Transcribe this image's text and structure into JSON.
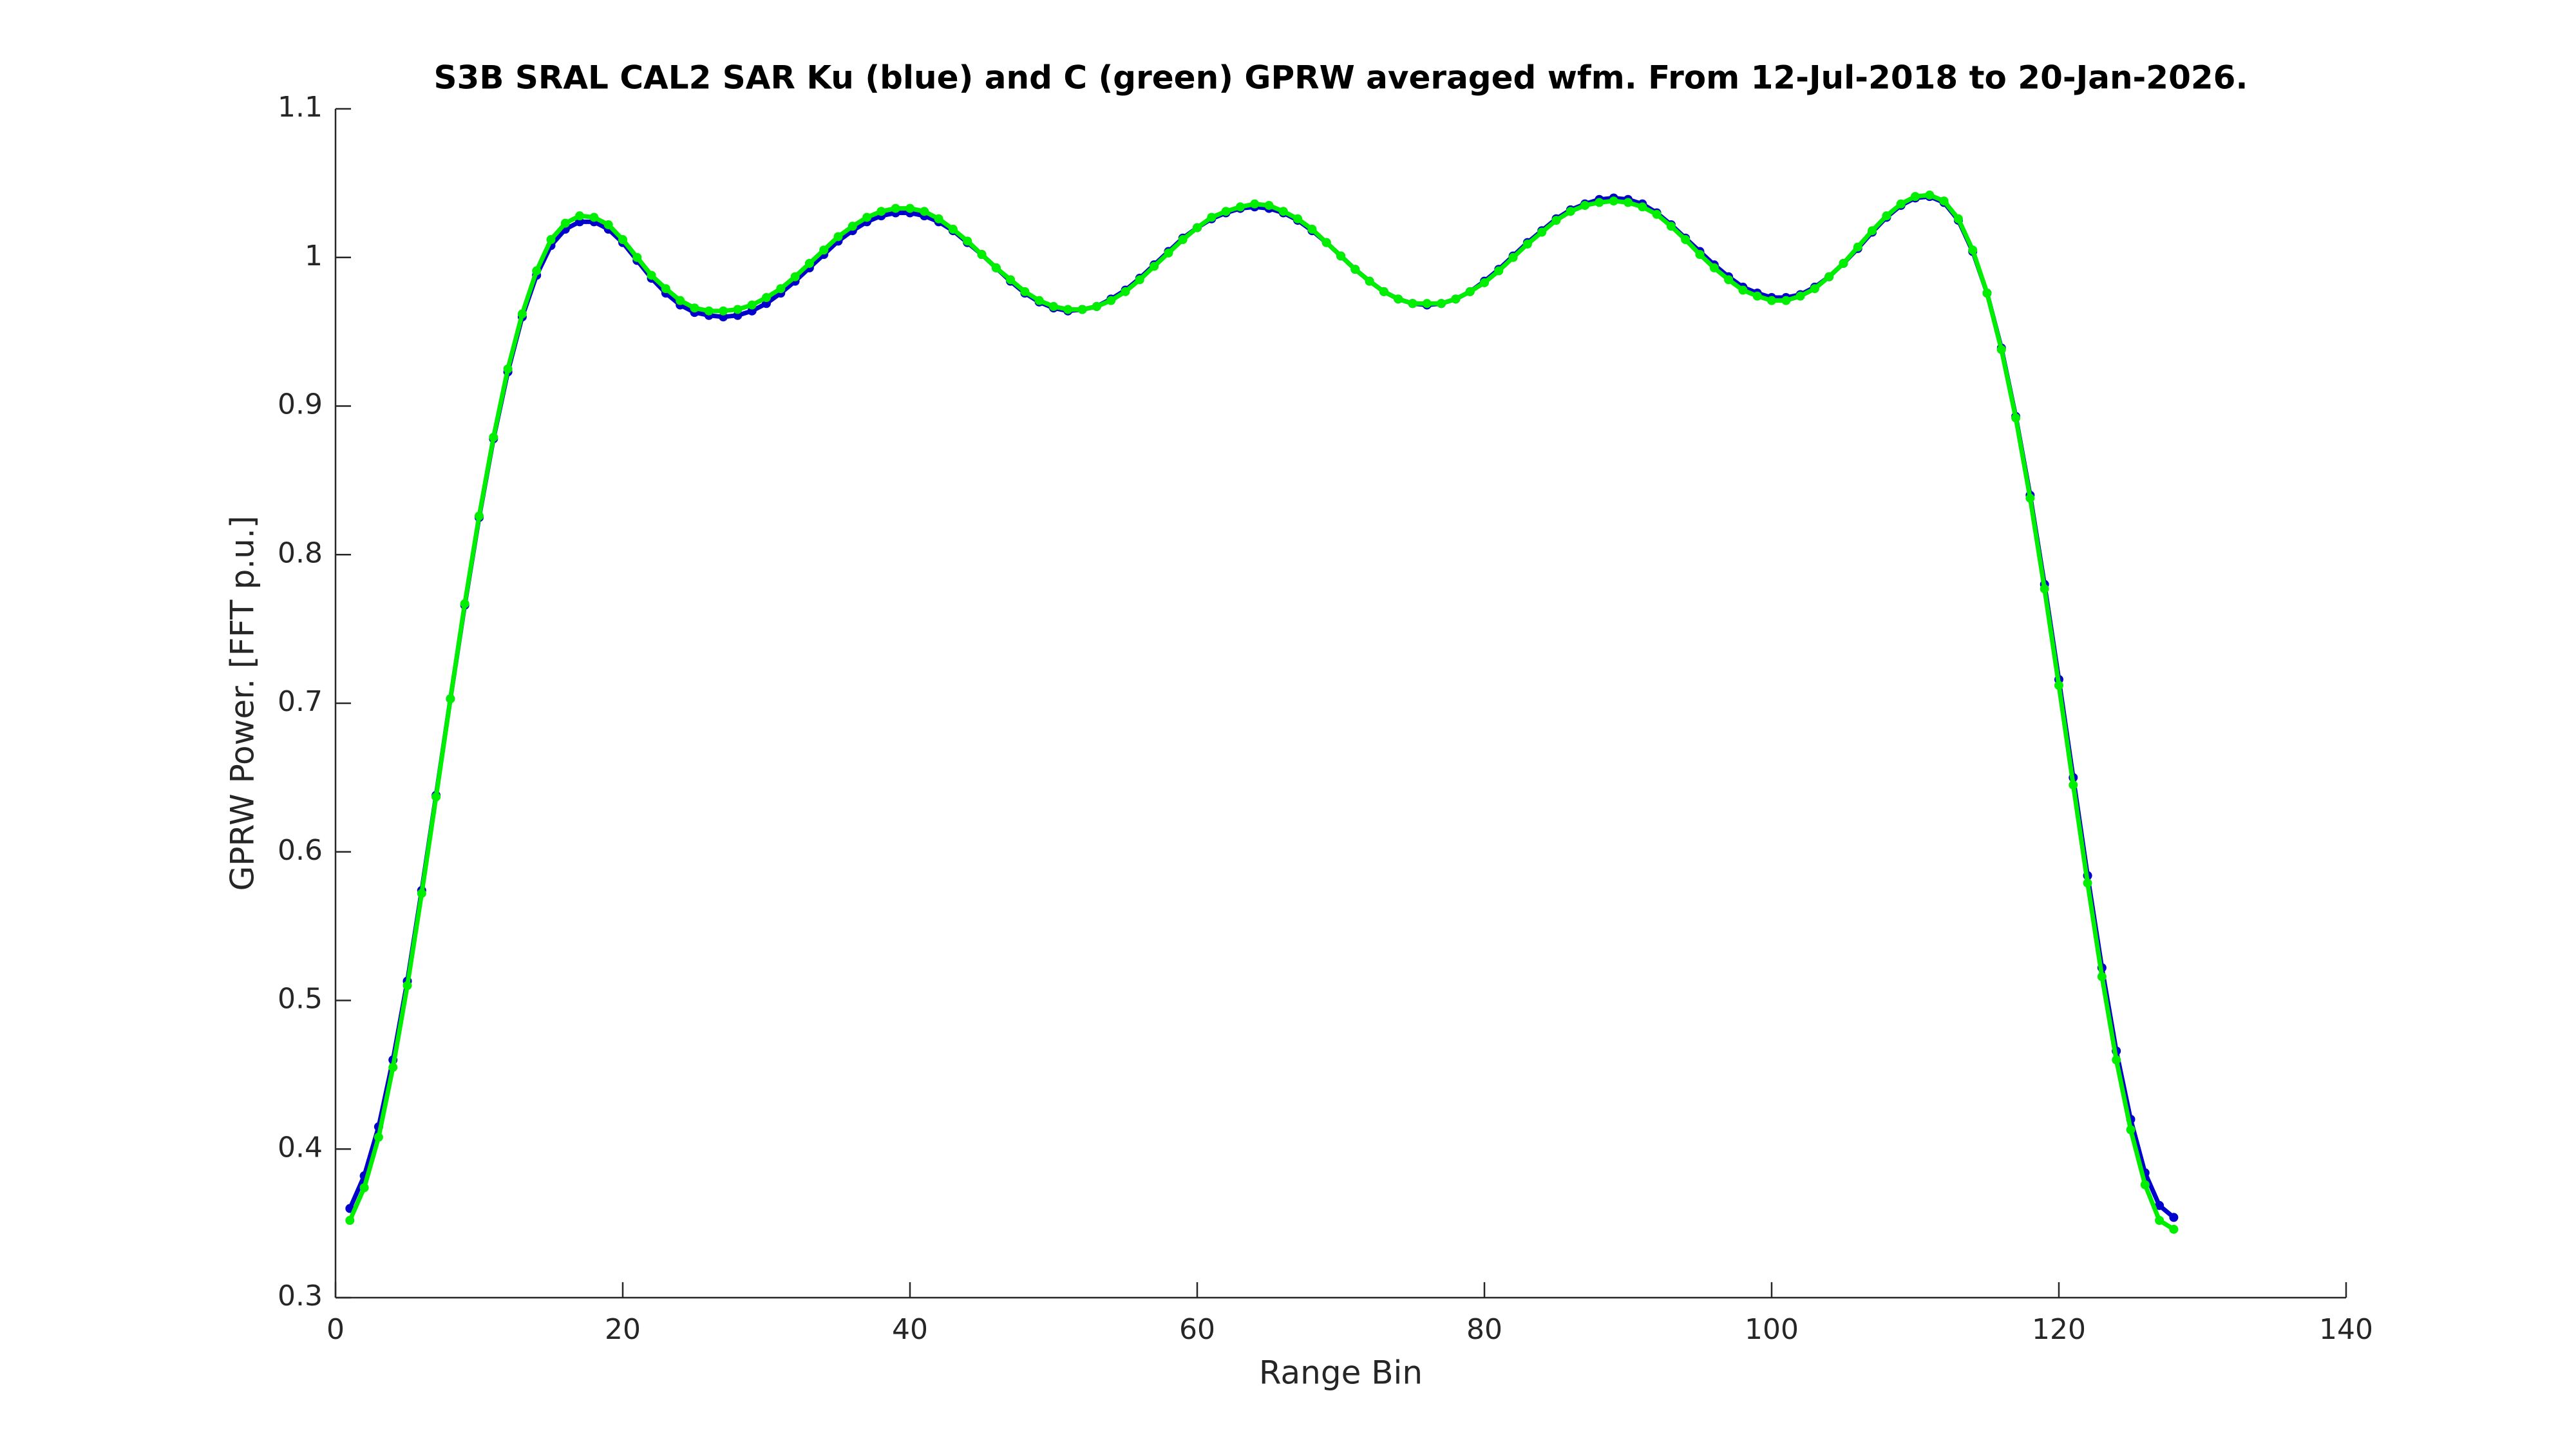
{
  "chart_data": {
    "type": "line",
    "title": "S3B SRAL CAL2 SAR Ku (blue) and C (green) GPRW averaged wfm. From 12-Jul-2018 to 20-Jan-2026.",
    "x_label": "Range Bin",
    "y_label": "GPRW Power. [FFT p.u.]",
    "x": [
      1,
      2,
      3,
      4,
      5,
      6,
      7,
      8,
      9,
      10,
      11,
      12,
      13,
      14,
      15,
      16,
      17,
      18,
      19,
      20,
      21,
      22,
      23,
      24,
      25,
      26,
      27,
      28,
      29,
      30,
      31,
      32,
      33,
      34,
      35,
      36,
      37,
      38,
      39,
      40,
      41,
      42,
      43,
      44,
      45,
      46,
      47,
      48,
      49,
      50,
      51,
      52,
      53,
      54,
      55,
      56,
      57,
      58,
      59,
      60,
      61,
      62,
      63,
      64,
      65,
      66,
      67,
      68,
      69,
      70,
      71,
      72,
      73,
      74,
      75,
      76,
      77,
      78,
      79,
      80,
      81,
      82,
      83,
      84,
      85,
      86,
      87,
      88,
      89,
      90,
      91,
      92,
      93,
      94,
      95,
      96,
      97,
      98,
      99,
      100,
      101,
      102,
      103,
      104,
      105,
      106,
      107,
      108,
      109,
      110,
      111,
      112,
      113,
      114,
      115,
      116,
      117,
      118,
      119,
      120,
      121,
      122,
      123,
      124,
      125,
      126,
      127,
      128
    ],
    "series": [
      {
        "color": "#0000cc",
        "values": [
          0.36,
          0.382,
          0.415,
          0.46,
          0.513,
          0.574,
          0.638,
          0.703,
          0.766,
          0.825,
          0.878,
          0.923,
          0.96,
          0.988,
          1.008,
          1.019,
          1.024,
          1.024,
          1.019,
          1.01,
          0.998,
          0.986,
          0.976,
          0.968,
          0.963,
          0.961,
          0.96,
          0.961,
          0.964,
          0.969,
          0.976,
          0.984,
          0.993,
          1.002,
          1.011,
          1.018,
          1.024,
          1.028,
          1.03,
          1.03,
          1.028,
          1.024,
          1.018,
          1.01,
          1.002,
          0.993,
          0.984,
          0.976,
          0.97,
          0.966,
          0.964,
          0.965,
          0.967,
          0.972,
          0.978,
          0.986,
          0.995,
          1.004,
          1.013,
          1.02,
          1.026,
          1.03,
          1.033,
          1.034,
          1.033,
          1.03,
          1.025,
          1.018,
          1.01,
          1.001,
          0.992,
          0.984,
          0.977,
          0.972,
          0.969,
          0.968,
          0.969,
          0.972,
          0.977,
          0.984,
          0.992,
          1.001,
          1.01,
          1.018,
          1.026,
          1.032,
          1.036,
          1.039,
          1.04,
          1.039,
          1.036,
          1.03,
          1.022,
          1.013,
          1.004,
          0.995,
          0.987,
          0.98,
          0.976,
          0.973,
          0.973,
          0.975,
          0.98,
          0.987,
          0.996,
          1.006,
          1.017,
          1.027,
          1.035,
          1.04,
          1.041,
          1.037,
          1.025,
          1.004,
          0.976,
          0.939,
          0.893,
          0.84,
          0.78,
          0.716,
          0.65,
          0.584,
          0.522,
          0.466,
          0.42,
          0.384,
          0.362,
          0.354
        ]
      },
      {
        "color": "#00ee00",
        "values": [
          0.352,
          0.374,
          0.408,
          0.455,
          0.51,
          0.572,
          0.637,
          0.703,
          0.767,
          0.826,
          0.879,
          0.925,
          0.962,
          0.991,
          1.012,
          1.023,
          1.028,
          1.027,
          1.022,
          1.012,
          1.0,
          0.988,
          0.979,
          0.971,
          0.966,
          0.964,
          0.964,
          0.965,
          0.968,
          0.973,
          0.979,
          0.987,
          0.996,
          1.005,
          1.014,
          1.021,
          1.027,
          1.031,
          1.033,
          1.033,
          1.031,
          1.026,
          1.019,
          1.011,
          1.002,
          0.993,
          0.985,
          0.977,
          0.971,
          0.967,
          0.965,
          0.965,
          0.967,
          0.971,
          0.977,
          0.985,
          0.994,
          1.003,
          1.012,
          1.02,
          1.027,
          1.031,
          1.034,
          1.036,
          1.035,
          1.031,
          1.026,
          1.019,
          1.01,
          1.001,
          0.992,
          0.984,
          0.977,
          0.972,
          0.969,
          0.969,
          0.969,
          0.972,
          0.977,
          0.983,
          0.991,
          1.0,
          1.009,
          1.017,
          1.025,
          1.031,
          1.035,
          1.037,
          1.038,
          1.037,
          1.034,
          1.029,
          1.021,
          1.012,
          1.002,
          0.993,
          0.985,
          0.978,
          0.974,
          0.971,
          0.971,
          0.974,
          0.979,
          0.987,
          0.996,
          1.007,
          1.018,
          1.028,
          1.036,
          1.041,
          1.042,
          1.038,
          1.026,
          1.005,
          0.976,
          0.938,
          0.892,
          0.838,
          0.777,
          0.712,
          0.645,
          0.579,
          0.516,
          0.46,
          0.413,
          0.376,
          0.352,
          0.346
        ]
      }
    ],
    "xlim": [
      0,
      140
    ],
    "xticks": [
      0,
      20,
      40,
      60,
      80,
      100,
      120,
      140
    ],
    "ylim": [
      0.3,
      1.1
    ],
    "yticks": [
      0.3,
      0.4,
      0.5,
      0.6,
      0.7,
      0.8,
      0.9,
      1,
      1.1
    ],
    "grid": false
  }
}
